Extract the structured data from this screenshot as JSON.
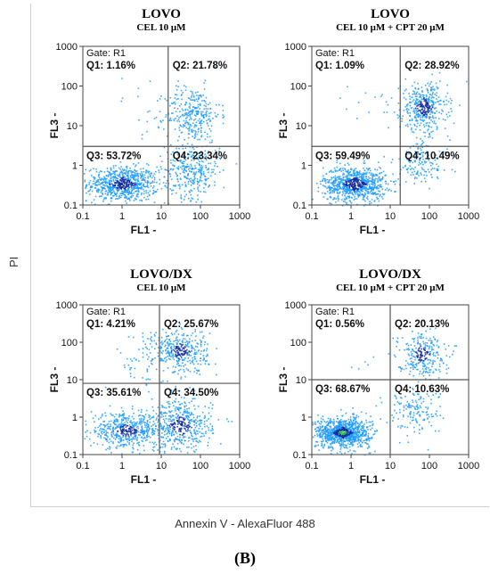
{
  "figure": {
    "y_axis_label": "PI",
    "x_axis_label": "Annexin V - AlexaFluor 488",
    "panel_label": "(B)"
  },
  "colors": {
    "dots_low": "#1e9bff",
    "dots_mid": "#0e2a9b",
    "dots_high": "#1fbf3a",
    "gate_line": "#555555"
  },
  "chart_data": [
    {
      "type": "scatter",
      "title": "LOVO",
      "subtitle": "CEL 10 μM",
      "xlabel": "FL1  -",
      "ylabel": "FL3  -",
      "xscale": "log",
      "yscale": "log",
      "xlim": [
        0.1,
        1000
      ],
      "ylim": [
        0.1,
        1000
      ],
      "x_ticks": [
        "0.1",
        "1",
        "10",
        "100",
        "1000"
      ],
      "y_ticks": [
        "0.1",
        "1",
        "10",
        "100",
        "1000"
      ],
      "gate_label": "Gate: R1",
      "gate_x": 15,
      "gate_y": 3,
      "quadrants": [
        {
          "name": "Q1",
          "text": "Q1: 1.16%",
          "value": 1.16
        },
        {
          "name": "Q2",
          "text": "Q2: 21.78%",
          "value": 21.78
        },
        {
          "name": "Q3",
          "text": "Q3: 53.72%",
          "value": 53.72
        },
        {
          "name": "Q4",
          "text": "Q4: 23.34%",
          "value": 23.34
        }
      ],
      "clusters": [
        {
          "x": 1.0,
          "y": 0.35,
          "sx": 0.45,
          "sy": 0.22,
          "weight": 0.54,
          "density": "mid"
        },
        {
          "x": 60,
          "y": 20,
          "sx": 0.35,
          "sy": 0.35,
          "weight": 0.22,
          "density": "low"
        },
        {
          "x": 60,
          "y": 0.8,
          "sx": 0.35,
          "sy": 0.35,
          "weight": 0.23,
          "density": "low"
        },
        {
          "x": 3,
          "y": 30,
          "sx": 0.4,
          "sy": 0.4,
          "weight": 0.01,
          "density": "low"
        }
      ]
    },
    {
      "type": "scatter",
      "title": "LOVO",
      "subtitle": "CEL 10 μM + CPT 20 μM",
      "xlabel": "FL1  -",
      "ylabel": "FL3  -",
      "xscale": "log",
      "yscale": "log",
      "xlim": [
        0.1,
        1000
      ],
      "ylim": [
        0.1,
        1000
      ],
      "x_ticks": [
        "0.1",
        "1",
        "10",
        "100",
        "1000"
      ],
      "y_ticks": [
        "0.1",
        "1",
        "10",
        "100",
        "1000"
      ],
      "gate_label": "Gate: R1",
      "gate_x": 18,
      "gate_y": 3,
      "quadrants": [
        {
          "name": "Q1",
          "text": "Q1: 1.09%",
          "value": 1.09
        },
        {
          "name": "Q2",
          "text": "Q2: 28.92%",
          "value": 28.92
        },
        {
          "name": "Q3",
          "text": "Q3: 59.49%",
          "value": 59.49
        },
        {
          "name": "Q4",
          "text": "Q4: 10.49%",
          "value": 10.49
        }
      ],
      "clusters": [
        {
          "x": 1.2,
          "y": 0.35,
          "sx": 0.4,
          "sy": 0.22,
          "weight": 0.6,
          "density": "mid"
        },
        {
          "x": 70,
          "y": 30,
          "sx": 0.3,
          "sy": 0.3,
          "weight": 0.29,
          "density": "mid"
        },
        {
          "x": 60,
          "y": 1.2,
          "sx": 0.35,
          "sy": 0.3,
          "weight": 0.1,
          "density": "low"
        },
        {
          "x": 3,
          "y": 30,
          "sx": 0.4,
          "sy": 0.4,
          "weight": 0.01,
          "density": "low"
        }
      ]
    },
    {
      "type": "scatter",
      "title": "LOVO/DX",
      "subtitle": "CEL 10 μM",
      "xlabel": "FL1  -",
      "ylabel": "FL3  -",
      "xscale": "log",
      "yscale": "log",
      "xlim": [
        0.1,
        1000
      ],
      "ylim": [
        0.1,
        1000
      ],
      "x_ticks": [
        "0.1",
        "1",
        "10",
        "100",
        "1000"
      ],
      "y_ticks": [
        "0.1",
        "1",
        "10",
        "100",
        "1000"
      ],
      "gate_label": "Gate: R1",
      "gate_x": 9,
      "gate_y": 8,
      "quadrants": [
        {
          "name": "Q1",
          "text": "Q1: 4.21%",
          "value": 4.21
        },
        {
          "name": "Q2",
          "text": "Q2: 25.67%",
          "value": 25.67
        },
        {
          "name": "Q3",
          "text": "Q3: 35.61%",
          "value": 35.61
        },
        {
          "name": "Q4",
          "text": "Q4: 34.50%",
          "value": 34.5
        }
      ],
      "clusters": [
        {
          "x": 1.2,
          "y": 0.45,
          "sx": 0.45,
          "sy": 0.22,
          "weight": 0.36,
          "density": "mid"
        },
        {
          "x": 30,
          "y": 60,
          "sx": 0.35,
          "sy": 0.3,
          "weight": 0.26,
          "density": "mid"
        },
        {
          "x": 30,
          "y": 0.6,
          "sx": 0.4,
          "sy": 0.35,
          "weight": 0.34,
          "density": "mid"
        },
        {
          "x": 3,
          "y": 40,
          "sx": 0.35,
          "sy": 0.4,
          "weight": 0.04,
          "density": "low"
        }
      ]
    },
    {
      "type": "scatter",
      "title": "LOVO/DX",
      "subtitle": "CEL 10 μM + CPT 20 μM",
      "xlabel": "FL1  -",
      "ylabel": "FL3  -",
      "xscale": "log",
      "yscale": "log",
      "xlim": [
        0.1,
        1000
      ],
      "ylim": [
        0.1,
        1000
      ],
      "x_ticks": [
        "0.1",
        "1",
        "10",
        "100",
        "1000"
      ],
      "y_ticks": [
        "0.1",
        "1",
        "10",
        "100",
        "1000"
      ],
      "gate_label": "Gate: R1",
      "gate_x": 10,
      "gate_y": 10,
      "quadrants": [
        {
          "name": "Q1",
          "text": "Q1: 0.56%",
          "value": 0.56
        },
        {
          "name": "Q2",
          "text": "Q2: 20.13%",
          "value": 20.13
        },
        {
          "name": "Q3",
          "text": "Q3: 68.67%",
          "value": 68.67
        },
        {
          "name": "Q4",
          "text": "Q4: 10.63%",
          "value": 10.63
        }
      ],
      "clusters": [
        {
          "x": 0.6,
          "y": 0.4,
          "sx": 0.35,
          "sy": 0.2,
          "weight": 0.69,
          "density": "high"
        },
        {
          "x": 60,
          "y": 50,
          "sx": 0.3,
          "sy": 0.3,
          "weight": 0.2,
          "density": "mid"
        },
        {
          "x": 40,
          "y": 1.5,
          "sx": 0.35,
          "sy": 0.3,
          "weight": 0.105,
          "density": "low"
        },
        {
          "x": 3,
          "y": 30,
          "sx": 0.4,
          "sy": 0.4,
          "weight": 0.005,
          "density": "low"
        }
      ]
    }
  ]
}
